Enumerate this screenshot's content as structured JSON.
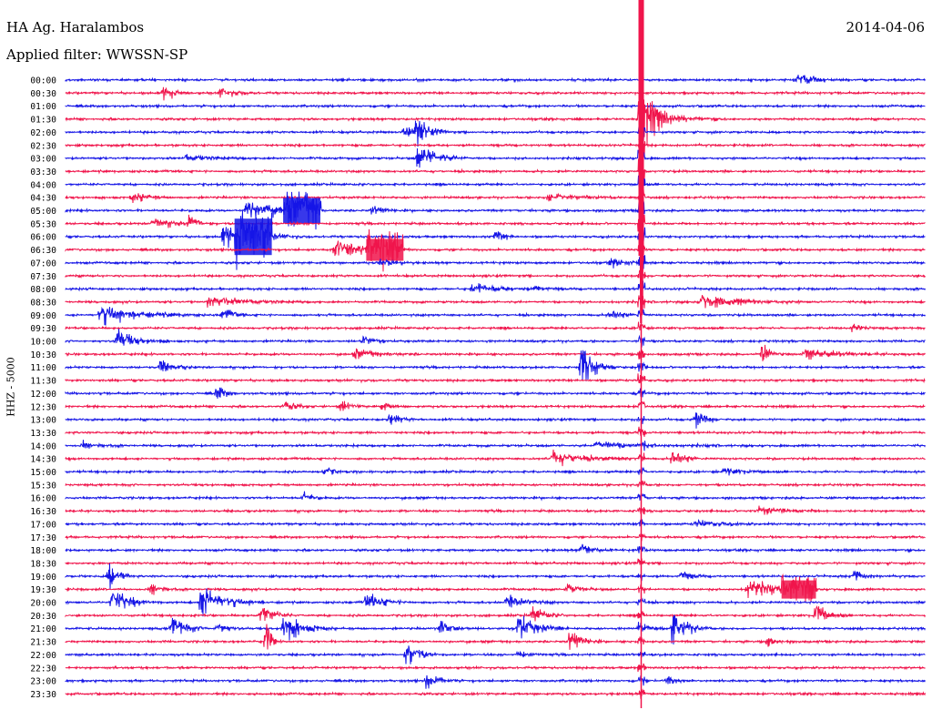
{
  "header": {
    "station": "HA Ag. Haralambos",
    "filter": "Applied filter: WWSSN-SP",
    "date": "2014-04-06"
  },
  "colors": {
    "blue": "#1515e6",
    "red": "#f0144b"
  },
  "chart_data": {
    "type": "line",
    "ylabel": "HHZ - 5000",
    "tick_labels": [
      "00:00",
      "00:30",
      "01:00",
      "01:30",
      "02:00",
      "02:30",
      "03:00",
      "03:30",
      "04:00",
      "04:30",
      "05:00",
      "05:30",
      "06:00",
      "06:30",
      "07:00",
      "07:30",
      "08:00",
      "08:30",
      "09:00",
      "09:30",
      "10:00",
      "10:30",
      "11:00",
      "11:30",
      "12:00",
      "12:30",
      "13:00",
      "13:30",
      "14:00",
      "14:30",
      "15:00",
      "15:30",
      "16:00",
      "16:30",
      "17:00",
      "17:30",
      "18:00",
      "18:30",
      "19:00",
      "19:30",
      "20:00",
      "20:30",
      "21:00",
      "21:30",
      "22:00",
      "22:30",
      "23:00",
      "23:30"
    ],
    "trace_minutes": 30,
    "bursts": [
      {
        "row": 0,
        "t": 25.5,
        "amp": 4,
        "dur": 0.6
      },
      {
        "row": 0,
        "t": 25.8,
        "amp": 5,
        "dur": 0.5
      },
      {
        "row": 1,
        "t": 3.4,
        "amp": 8,
        "dur": 0.4
      },
      {
        "row": 1,
        "t": 5.4,
        "amp": 4,
        "dur": 0.6
      },
      {
        "row": 4,
        "t": 11.8,
        "amp": 5,
        "dur": 0.8
      },
      {
        "row": 4,
        "t": 12.2,
        "amp": 14,
        "dur": 0.5
      },
      {
        "row": 6,
        "t": 12.3,
        "amp": 12,
        "dur": 0.8
      },
      {
        "row": 6,
        "t": 4.2,
        "amp": 3,
        "dur": 1.0
      },
      {
        "row": 9,
        "t": 2.3,
        "amp": 5,
        "dur": 0.6
      },
      {
        "row": 9,
        "t": 16.8,
        "amp": 4,
        "dur": 1.2
      },
      {
        "row": 10,
        "t": 6.3,
        "amp": 10,
        "dur": 1.2
      },
      {
        "row": 10,
        "t": 10.7,
        "amp": 5,
        "dur": 0.4
      },
      {
        "row": 11,
        "t": 3.0,
        "amp": 4,
        "dur": 1.0
      },
      {
        "row": 11,
        "t": 4.3,
        "amp": 8,
        "dur": 0.4
      },
      {
        "row": 12,
        "t": 5.5,
        "amp": 14,
        "dur": 1.2
      },
      {
        "row": 12,
        "t": 15.0,
        "amp": 5,
        "dur": 0.4
      },
      {
        "row": 13,
        "t": 9.4,
        "amp": 10,
        "dur": 1.2
      },
      {
        "row": 14,
        "t": 11.0,
        "amp": 3,
        "dur": 0.6
      },
      {
        "row": 14,
        "t": 19.0,
        "amp": 3,
        "dur": 0.8
      },
      {
        "row": 16,
        "t": 14.2,
        "amp": 5,
        "dur": 1.0
      },
      {
        "row": 16,
        "t": 16.4,
        "amp": 3,
        "dur": 0.5
      },
      {
        "row": 17,
        "t": 5.0,
        "amp": 5,
        "dur": 1.5
      },
      {
        "row": 17,
        "t": 22.2,
        "amp": 6,
        "dur": 1.6
      },
      {
        "row": 18,
        "t": 1.2,
        "amp": 8,
        "dur": 1.6
      },
      {
        "row": 18,
        "t": 5.5,
        "amp": 6,
        "dur": 0.4
      },
      {
        "row": 18,
        "t": 19.0,
        "amp": 6,
        "dur": 0.4
      },
      {
        "row": 19,
        "t": 27.5,
        "amp": 4,
        "dur": 0.4
      },
      {
        "row": 20,
        "t": 1.8,
        "amp": 9,
        "dur": 0.8
      },
      {
        "row": 20,
        "t": 10.4,
        "amp": 5,
        "dur": 0.4
      },
      {
        "row": 21,
        "t": 10.1,
        "amp": 4,
        "dur": 1.0
      },
      {
        "row": 21,
        "t": 24.3,
        "amp": 10,
        "dur": 0.3
      },
      {
        "row": 21,
        "t": 25.8,
        "amp": 4,
        "dur": 1.6
      },
      {
        "row": 22,
        "t": 3.3,
        "amp": 6,
        "dur": 0.6
      },
      {
        "row": 22,
        "t": 18.0,
        "amp": 18,
        "dur": 0.6
      },
      {
        "row": 24,
        "t": 5.3,
        "amp": 8,
        "dur": 0.3
      },
      {
        "row": 25,
        "t": 7.6,
        "amp": 6,
        "dur": 0.4
      },
      {
        "row": 25,
        "t": 9.6,
        "amp": 5,
        "dur": 0.4
      },
      {
        "row": 25,
        "t": 11.0,
        "amp": 4,
        "dur": 0.4
      },
      {
        "row": 26,
        "t": 11.3,
        "amp": 6,
        "dur": 0.4
      },
      {
        "row": 26,
        "t": 22.0,
        "amp": 9,
        "dur": 0.4
      },
      {
        "row": 28,
        "t": 0.6,
        "amp": 3,
        "dur": 0.6
      },
      {
        "row": 28,
        "t": 18.5,
        "amp": 3,
        "dur": 2.0
      },
      {
        "row": 29,
        "t": 17.0,
        "amp": 6,
        "dur": 1.4
      },
      {
        "row": 29,
        "t": 21.2,
        "amp": 10,
        "dur": 0.4
      },
      {
        "row": 30,
        "t": 9.0,
        "amp": 4,
        "dur": 0.4
      },
      {
        "row": 30,
        "t": 23.0,
        "amp": 3,
        "dur": 0.8
      },
      {
        "row": 32,
        "t": 8.3,
        "amp": 4,
        "dur": 0.4
      },
      {
        "row": 33,
        "t": 24.2,
        "amp": 4,
        "dur": 1.0
      },
      {
        "row": 34,
        "t": 22.0,
        "amp": 3,
        "dur": 1.0
      },
      {
        "row": 36,
        "t": 18.0,
        "amp": 6,
        "dur": 0.5
      },
      {
        "row": 38,
        "t": 1.5,
        "amp": 14,
        "dur": 0.4
      },
      {
        "row": 38,
        "t": 27.5,
        "amp": 6,
        "dur": 0.5
      },
      {
        "row": 38,
        "t": 21.5,
        "amp": 5,
        "dur": 0.4
      },
      {
        "row": 39,
        "t": 3.0,
        "amp": 6,
        "dur": 0.4
      },
      {
        "row": 39,
        "t": 23.8,
        "amp": 8,
        "dur": 1.2
      },
      {
        "row": 39,
        "t": 17.5,
        "amp": 4,
        "dur": 0.6
      },
      {
        "row": 40,
        "t": 1.6,
        "amp": 10,
        "dur": 0.8
      },
      {
        "row": 40,
        "t": 4.7,
        "amp": 14,
        "dur": 1.0
      },
      {
        "row": 40,
        "t": 10.5,
        "amp": 7,
        "dur": 0.8
      },
      {
        "row": 40,
        "t": 15.4,
        "amp": 6,
        "dur": 0.8
      },
      {
        "row": 41,
        "t": 6.8,
        "amp": 12,
        "dur": 0.5
      },
      {
        "row": 41,
        "t": 16.3,
        "amp": 8,
        "dur": 0.5
      },
      {
        "row": 41,
        "t": 26.2,
        "amp": 10,
        "dur": 0.5
      },
      {
        "row": 42,
        "t": 3.7,
        "amp": 10,
        "dur": 0.6
      },
      {
        "row": 42,
        "t": 5.3,
        "amp": 6,
        "dur": 0.4
      },
      {
        "row": 42,
        "t": 7.6,
        "amp": 14,
        "dur": 0.8
      },
      {
        "row": 42,
        "t": 13.1,
        "amp": 6,
        "dur": 0.6
      },
      {
        "row": 42,
        "t": 15.8,
        "amp": 12,
        "dur": 0.8
      },
      {
        "row": 42,
        "t": 21.2,
        "amp": 14,
        "dur": 0.6
      },
      {
        "row": 42,
        "t": 20.0,
        "amp": 5,
        "dur": 0.4
      },
      {
        "row": 43,
        "t": 17.6,
        "amp": 10,
        "dur": 0.5
      },
      {
        "row": 43,
        "t": 7.0,
        "amp": 18,
        "dur": 0.2
      },
      {
        "row": 43,
        "t": 24.5,
        "amp": 5,
        "dur": 0.4
      },
      {
        "row": 44,
        "t": 11.9,
        "amp": 10,
        "dur": 0.6
      },
      {
        "row": 44,
        "t": 15.8,
        "amp": 4,
        "dur": 0.4
      },
      {
        "row": 46,
        "t": 12.6,
        "amp": 8,
        "dur": 0.5
      },
      {
        "row": 46,
        "t": 21.0,
        "amp": 4,
        "dur": 0.4
      }
    ],
    "saturated_bursts": [
      {
        "row": 10,
        "t": 7.6,
        "dur": 1.3,
        "amp": 14
      },
      {
        "row": 12,
        "t": 5.9,
        "dur": 1.3,
        "amp": 20
      },
      {
        "row": 13,
        "t": 10.5,
        "dur": 1.3,
        "amp": 12
      },
      {
        "row": 39,
        "t": 25.0,
        "dur": 1.2,
        "amp": 10
      }
    ],
    "big_quake": {
      "row": 3,
      "t": 20.1,
      "amp": 160,
      "dur": 2.0,
      "tail_rows": 45
    }
  }
}
